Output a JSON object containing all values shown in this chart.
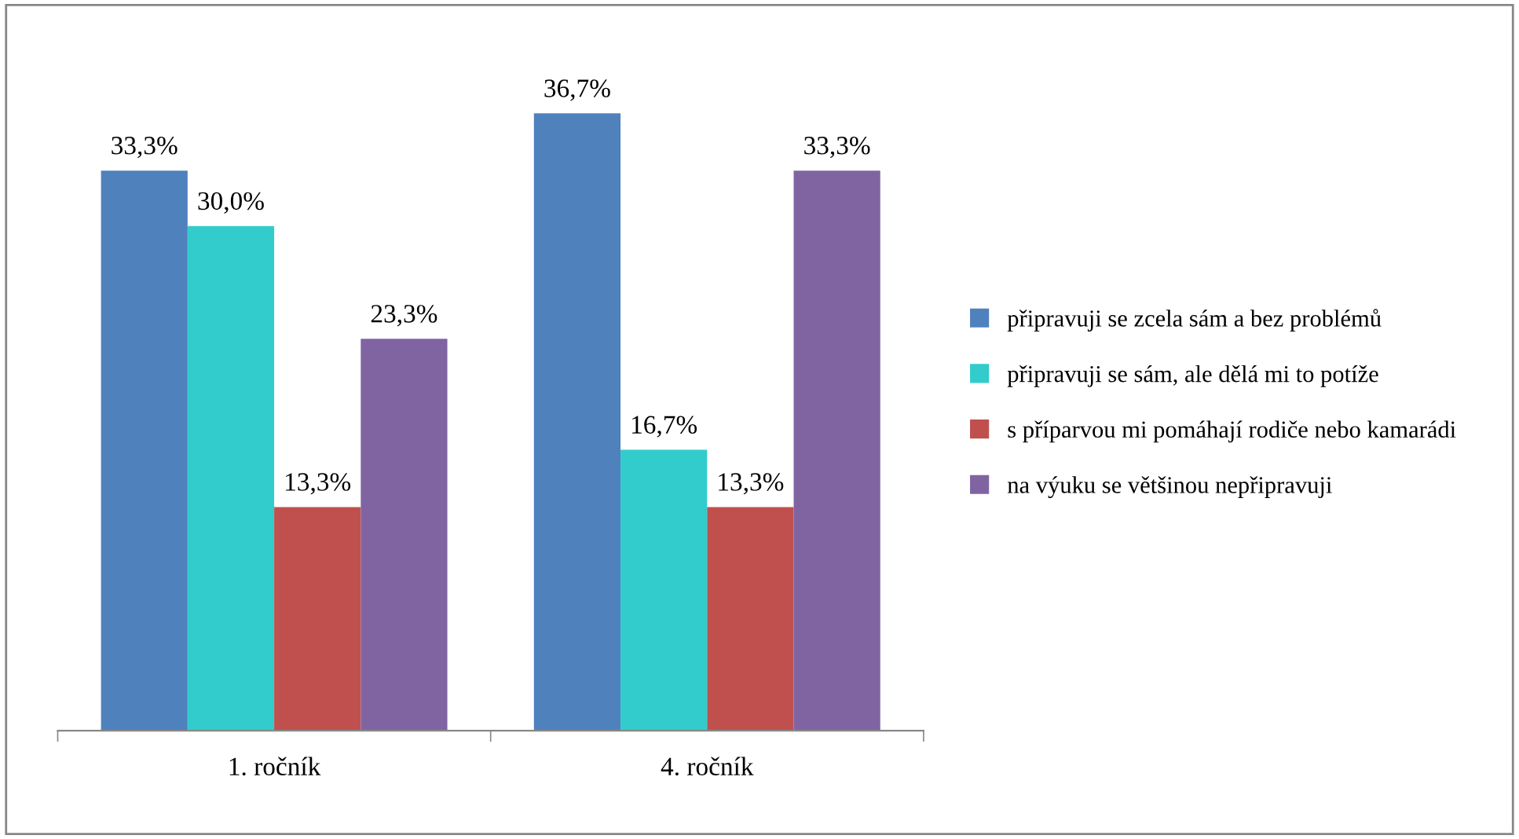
{
  "chart_data": {
    "type": "bar",
    "categories": [
      "1. ročník",
      "4. ročník"
    ],
    "series": [
      {
        "name": "připravuji se zcela sám a bez problémů",
        "color": "#4f81bd",
        "values": [
          33.3,
          36.7
        ],
        "value_labels": [
          "33,3%",
          "36,7%"
        ]
      },
      {
        "name": "připravuji se sám, ale dělá mi to potíže",
        "color": "#33cccc",
        "values": [
          30.0,
          16.7
        ],
        "value_labels": [
          "30,0%",
          "16,7%"
        ]
      },
      {
        "name": "s příparvou mi pomáhají rodiče nebo kamarádi",
        "color": "#c0504d",
        "values": [
          13.3,
          13.3
        ],
        "value_labels": [
          "13,3%",
          "13,3%"
        ]
      },
      {
        "name": "na výuku se většinou nepřipravuji",
        "color": "#8064a2",
        "values": [
          23.3,
          33.3
        ],
        "value_labels": [
          "23,3%",
          "33,3%"
        ]
      }
    ],
    "legend": "right",
    "grid": false
  }
}
